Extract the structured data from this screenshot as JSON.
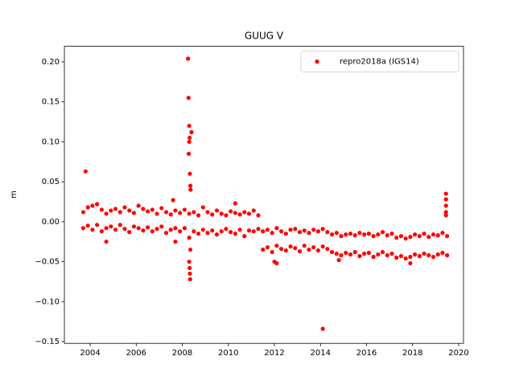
{
  "chart_data": {
    "type": "scatter",
    "title": "GUUG V",
    "ylabel": "m",
    "xlim": [
      2002.88,
      2020.21
    ],
    "ylim": [
      -0.1522,
      0.2195
    ],
    "xticks": [
      2004,
      2006,
      2008,
      2010,
      2012,
      2014,
      2016,
      2018,
      2020
    ],
    "yticks": [
      {
        "value": 0.2,
        "label": "0.20"
      },
      {
        "value": 0.15,
        "label": "0.15"
      },
      {
        "value": 0.1,
        "label": "0.10"
      },
      {
        "value": 0.05,
        "label": "0.05"
      },
      {
        "value": 0,
        "label": "0.00"
      },
      {
        "value": -0.05,
        "label": "−0.05"
      },
      {
        "value": -0.1,
        "label": "−0.10"
      },
      {
        "value": -0.15,
        "label": "−0.15"
      }
    ],
    "legend": "upper right",
    "x": [
      2003.7,
      2003.7,
      2003.9,
      2003.9,
      2004.1,
      2004.1,
      2004.3,
      2004.3,
      2004.5,
      2004.5,
      2004.7,
      2004.7,
      2004.9,
      2004.9,
      2005.1,
      2005.1,
      2005.3,
      2005.3,
      2005.5,
      2005.5,
      2005.7,
      2005.7,
      2005.9,
      2005.9,
      2006.1,
      2006.1,
      2006.3,
      2006.3,
      2006.5,
      2006.5,
      2006.7,
      2006.7,
      2006.9,
      2006.9,
      2007.1,
      2007.1,
      2007.3,
      2007.3,
      2007.5,
      2007.5,
      2007.7,
      2007.7,
      2007.9,
      2007.9,
      2008.1,
      2008.1,
      2008.3,
      2008.3,
      2008.5,
      2008.5,
      2008.7,
      2008.7,
      2008.9,
      2008.9,
      2009.1,
      2009.1,
      2009.3,
      2009.3,
      2009.5,
      2009.5,
      2009.7,
      2009.7,
      2009.9,
      2009.9,
      2010.1,
      2010.1,
      2010.3,
      2010.3,
      2010.5,
      2010.5,
      2010.7,
      2010.7,
      2010.9,
      2010.9,
      2011.1,
      2011.1,
      2011.3,
      2011.3,
      2011.5,
      2011.5,
      2011.7,
      2011.7,
      2011.9,
      2011.9,
      2012.1,
      2012.1,
      2012.3,
      2012.3,
      2012.5,
      2012.5,
      2012.7,
      2012.7,
      2012.9,
      2012.9,
      2013.1,
      2013.1,
      2013.3,
      2013.3,
      2013.5,
      2013.5,
      2013.7,
      2013.7,
      2013.9,
      2013.9,
      2014.1,
      2014.1,
      2014.3,
      2014.3,
      2014.5,
      2014.5,
      2014.7,
      2014.7,
      2014.9,
      2014.9,
      2015.1,
      2015.1,
      2015.3,
      2015.3,
      2015.5,
      2015.5,
      2015.7,
      2015.7,
      2015.9,
      2015.9,
      2016.1,
      2016.1,
      2016.3,
      2016.3,
      2016.5,
      2016.5,
      2016.7,
      2016.7,
      2016.9,
      2016.9,
      2017.1,
      2017.1,
      2017.3,
      2017.3,
      2017.5,
      2017.5,
      2017.7,
      2017.7,
      2017.9,
      2017.9,
      2018.1,
      2018.1,
      2018.3,
      2018.3,
      2018.5,
      2018.5,
      2018.7,
      2018.7,
      2018.9,
      2018.9,
      2019.1,
      2019.1,
      2019.3,
      2019.3,
      2019.5,
      2019.5,
      2003.8,
      2007.6,
      2007.7,
      2004.7,
      2008.25,
      2008.27,
      2008.3,
      2008.4,
      2008.28,
      2008.3,
      2008.32,
      2008.33,
      2008.35,
      2008.36,
      2008.3,
      2008.32,
      2008.33,
      2008.34,
      2008.35,
      2010.3,
      2012.0,
      2012.1,
      2014.1,
      2019.45,
      2019.45,
      2019.45,
      2019.45,
      2019.45,
      2017.9,
      2014.8
    ],
    "series": [
      {
        "name": "repro2018a (IGS14)",
        "color": "#ff0000",
        "values": [
          0.012,
          -0.008,
          0.018,
          -0.005,
          0.02,
          -0.01,
          0.022,
          -0.004,
          0.015,
          -0.012,
          0.01,
          -0.008,
          0.014,
          -0.006,
          0.016,
          -0.01,
          0.012,
          -0.004,
          0.018,
          -0.009,
          0.014,
          -0.013,
          0.011,
          -0.006,
          0.02,
          -0.008,
          0.016,
          -0.011,
          0.013,
          -0.007,
          0.015,
          -0.012,
          0.01,
          -0.009,
          0.017,
          -0.006,
          0.012,
          -0.014,
          0.009,
          -0.01,
          0.014,
          -0.008,
          0.011,
          -0.012,
          0.015,
          -0.008,
          0.01,
          -0.02,
          0.012,
          -0.012,
          0.008,
          -0.015,
          0.018,
          -0.01,
          0.012,
          -0.014,
          0.009,
          -0.011,
          0.014,
          -0.016,
          0.01,
          -0.012,
          0.008,
          -0.009,
          0.013,
          -0.013,
          0.011,
          -0.015,
          0.009,
          -0.01,
          0.012,
          -0.018,
          0.01,
          -0.011,
          0.014,
          -0.012,
          0.008,
          -0.009,
          -0.012,
          -0.035,
          -0.01,
          -0.032,
          -0.014,
          -0.038,
          -0.008,
          -0.03,
          -0.012,
          -0.034,
          -0.015,
          -0.036,
          -0.01,
          -0.031,
          -0.009,
          -0.033,
          -0.013,
          -0.037,
          -0.011,
          -0.03,
          -0.014,
          -0.035,
          -0.01,
          -0.032,
          -0.012,
          -0.036,
          -0.009,
          -0.031,
          -0.013,
          -0.034,
          -0.016,
          -0.038,
          -0.014,
          -0.04,
          -0.018,
          -0.042,
          -0.016,
          -0.039,
          -0.015,
          -0.041,
          -0.017,
          -0.038,
          -0.014,
          -0.043,
          -0.016,
          -0.04,
          -0.015,
          -0.039,
          -0.018,
          -0.044,
          -0.016,
          -0.041,
          -0.013,
          -0.038,
          -0.017,
          -0.042,
          -0.015,
          -0.04,
          -0.02,
          -0.045,
          -0.018,
          -0.043,
          -0.021,
          -0.046,
          -0.019,
          -0.044,
          -0.016,
          -0.041,
          -0.018,
          -0.043,
          -0.015,
          -0.04,
          -0.019,
          -0.042,
          -0.016,
          -0.044,
          -0.017,
          -0.041,
          -0.014,
          -0.039,
          -0.018,
          -0.042,
          0.063,
          0.027,
          -0.025,
          -0.025,
          0.204,
          0.155,
          0.12,
          0.112,
          0.085,
          0.1,
          0.105,
          0.06,
          0.045,
          0.04,
          -0.05,
          -0.058,
          -0.065,
          -0.072,
          -0.035,
          0.023,
          -0.05,
          -0.052,
          -0.134,
          0.035,
          0.028,
          0.02,
          0.012,
          0.008,
          -0.052,
          -0.048
        ]
      }
    ]
  }
}
